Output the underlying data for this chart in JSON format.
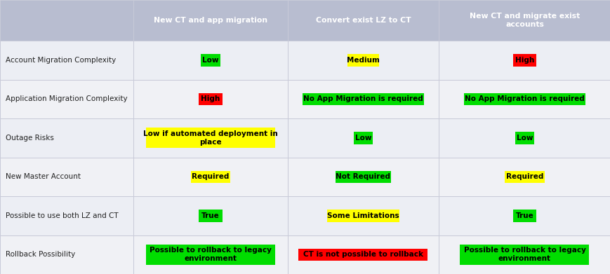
{
  "header_bg": "#b8bdd0",
  "row_bg_light": "#eceef4",
  "row_bg_white": "#f0f1f5",
  "border_color": "#c8cad8",
  "header_text_color": "#ffffff",
  "row_text_color": "#222222",
  "fig_bg": "#ffffff",
  "headers": [
    "",
    "New CT and app migration",
    "Convert exist LZ to CT",
    "New CT and migrate exist\naccounts"
  ],
  "rows": [
    {
      "label": "Account Migration Complexity",
      "cells": [
        {
          "text": "Low",
          "bg": "#00dd00",
          "text_color": "#000000"
        },
        {
          "text": "Medium",
          "bg": "#ffff00",
          "text_color": "#000000"
        },
        {
          "text": "High",
          "bg": "#ff0000",
          "text_color": "#000000"
        }
      ]
    },
    {
      "label": "Application Migration Complexity",
      "cells": [
        {
          "text": "High",
          "bg": "#ff0000",
          "text_color": "#000000"
        },
        {
          "text": "No App Migration is required",
          "bg": "#00dd00",
          "text_color": "#000000"
        },
        {
          "text": "No App Migration is required",
          "bg": "#00dd00",
          "text_color": "#000000"
        }
      ]
    },
    {
      "label": "Outage Risks",
      "cells": [
        {
          "text": "Low if automated deployment in\nplace",
          "bg": "#ffff00",
          "text_color": "#000000"
        },
        {
          "text": "Low",
          "bg": "#00dd00",
          "text_color": "#000000"
        },
        {
          "text": "Low",
          "bg": "#00dd00",
          "text_color": "#000000"
        }
      ]
    },
    {
      "label": "New Master Account",
      "cells": [
        {
          "text": "Required",
          "bg": "#ffff00",
          "text_color": "#000000"
        },
        {
          "text": "Not Required",
          "bg": "#00dd00",
          "text_color": "#000000"
        },
        {
          "text": "Required",
          "bg": "#ffff00",
          "text_color": "#000000"
        }
      ]
    },
    {
      "label": "Possible to use both LZ and CT",
      "cells": [
        {
          "text": "True",
          "bg": "#00dd00",
          "text_color": "#000000"
        },
        {
          "text": "Some Limitations",
          "bg": "#ffff00",
          "text_color": "#000000"
        },
        {
          "text": "True",
          "bg": "#00dd00",
          "text_color": "#000000"
        }
      ]
    },
    {
      "label": "Rollback Possibility",
      "cells": [
        {
          "text": "Possible to rollback to legacy\nenvironment",
          "bg": "#00dd00",
          "text_color": "#000000"
        },
        {
          "text": "CT is not possible to rollback",
          "bg": "#ff0000",
          "text_color": "#000000"
        },
        {
          "text": "Possible to rollback to legacy\nenvironment",
          "bg": "#00dd00",
          "text_color": "#000000"
        }
      ]
    }
  ]
}
